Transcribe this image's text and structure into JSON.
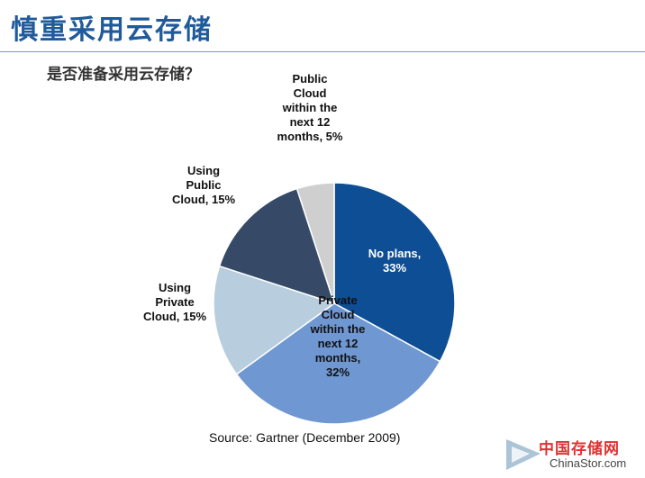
{
  "slide": {
    "title": "慎重采用云存储",
    "subtitle": "是否准备采用云存储？"
  },
  "chart_data": {
    "type": "pie",
    "title": "",
    "start_angle_deg": 0,
    "direction": "clockwise",
    "slices": [
      {
        "label_lines": [
          "No plans,",
          "33%"
        ],
        "value": 33,
        "color": "#0e4e94",
        "label_color": "#ffffff"
      },
      {
        "label_lines": [
          "Private",
          "Cloud",
          "within the",
          "next 12",
          "months,",
          "32%"
        ],
        "value": 32,
        "color": "#6f97d2",
        "label_color": "#111111"
      },
      {
        "label_lines": [
          "Using",
          "Private",
          "Cloud, 15%"
        ],
        "value": 15,
        "color": "#b8cddd",
        "label_color": "#111111"
      },
      {
        "label_lines": [
          "Using",
          "Public",
          "Cloud, 15%"
        ],
        "value": 15,
        "color": "#364a68",
        "label_color": "#111111"
      },
      {
        "label_lines": [
          "Public",
          "Cloud",
          "within the",
          "next 12",
          "months, 5%"
        ],
        "value": 5,
        "color": "#cfcfcf",
        "label_color": "#111111"
      }
    ]
  },
  "source": "Source: Gartner (December 2009)",
  "watermark": {
    "cn": "中国存储网",
    "en": "ChinaStor.com"
  }
}
